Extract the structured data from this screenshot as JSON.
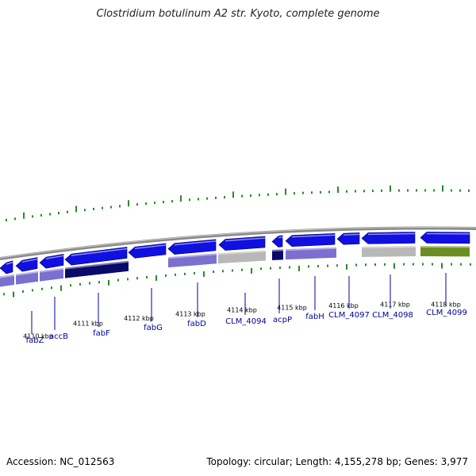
{
  "title": "Clostridium botulinum A2 str. Kyoto, complete genome",
  "footer": {
    "accession": "Accession: NC_012563",
    "summary": "Topology: circular; Length: 4,155,278 bp; Genes: 3,977"
  },
  "colors": {
    "gene_cds": "#1010e0",
    "gene_dark": "#0a0a6a",
    "cog_lavender": "#7b6fd0",
    "hypothetical_grey": "#b8b8b8",
    "olive": "#6b8e23",
    "backbone": "#8a8a8a",
    "gc_tick": "#2a8a2a",
    "label": "#0000a0"
  },
  "ruler_labels": [
    "4110 kbp",
    "4111 kbp",
    "4112 kbp",
    "4113 kbp",
    "4114 kbp",
    "4115 kbp",
    "4116 kbp",
    "4117 kbp",
    "4118 kbp"
  ],
  "genes": [
    {
      "name": "fabZ"
    },
    {
      "name": "accB"
    },
    {
      "name": "fabF"
    },
    {
      "name": "fabG"
    },
    {
      "name": "fabD"
    },
    {
      "name": "CLM_4094"
    },
    {
      "name": "acpP"
    },
    {
      "name": "fabH"
    },
    {
      "name": "CLM_4097"
    },
    {
      "name": "CLM_4098"
    },
    {
      "name": "CLM_4099"
    }
  ]
}
